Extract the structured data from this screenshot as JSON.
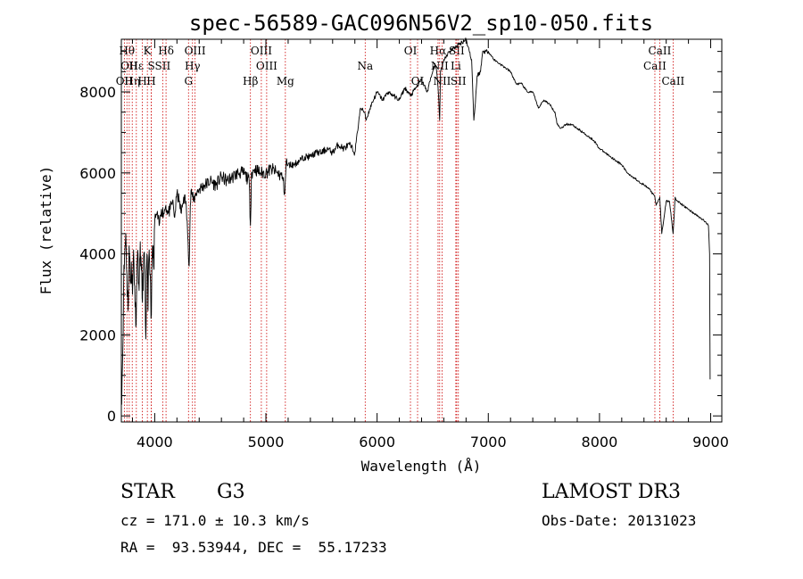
{
  "chart_data": {
    "type": "line",
    "title": "spec-56589-GAC096N56V2_sp10-050.fits",
    "xlabel": "Wavelength (Å)",
    "ylabel": "Flux (relative)",
    "xlim": [
      3700,
      9100
    ],
    "ylim": [
      -150,
      9300
    ],
    "xticks": [
      4000,
      5000,
      6000,
      7000,
      8000,
      9000
    ],
    "yticks": [
      0,
      2000,
      4000,
      6000,
      8000
    ],
    "grid": false,
    "series": [
      {
        "x": [
          3700,
          3710,
          3720,
          3730,
          3740,
          3750,
          3760,
          3770,
          3780,
          3790,
          3800,
          3810,
          3820,
          3830,
          3840,
          3850,
          3860,
          3870,
          3880,
          3890,
          3900,
          3910,
          3920,
          3930,
          3940,
          3950,
          3960,
          3970,
          3980,
          3990,
          4000,
          4020,
          4040,
          4060,
          4080,
          4100,
          4120,
          4140,
          4160,
          4180,
          4200,
          4220,
          4240,
          4260,
          4280,
          4300,
          4310,
          4320,
          4330,
          4340,
          4350,
          4370,
          4400,
          4450,
          4500,
          4550,
          4600,
          4650,
          4700,
          4750,
          4800,
          4850,
          4861,
          4870,
          4900,
          4950,
          5000,
          5050,
          5100,
          5150,
          5170,
          5183,
          5190,
          5250,
          5300,
          5350,
          5400,
          5450,
          5500,
          5550,
          5600,
          5650,
          5700,
          5750,
          5800,
          5850,
          5890,
          5900,
          5950,
          6000,
          6050,
          6100,
          6150,
          6200,
          6250,
          6300,
          6350,
          6400,
          6450,
          6500,
          6520,
          6540,
          6555,
          6563,
          6570,
          6580,
          6600,
          6650,
          6700,
          6750,
          6800,
          6850,
          6870,
          6880,
          6900,
          6930,
          6950,
          7000,
          7050,
          7100,
          7150,
          7200,
          7250,
          7300,
          7350,
          7400,
          7450,
          7500,
          7550,
          7600,
          7620,
          7650,
          7700,
          7750,
          7800,
          7850,
          7900,
          7950,
          8000,
          8050,
          8100,
          8150,
          8200,
          8250,
          8300,
          8350,
          8400,
          8450,
          8498,
          8510,
          8542,
          8560,
          8600,
          8630,
          8662,
          8680,
          8700,
          8750,
          8800,
          8850,
          8900,
          8950,
          8980,
          8990,
          8995
        ],
        "y": [
          500,
          1200,
          3100,
          4000,
          4500,
          3500,
          2600,
          4200,
          3300,
          3800,
          3000,
          4100,
          3200,
          2200,
          3700,
          4000,
          3100,
          4300,
          3600,
          2800,
          3900,
          3700,
          1900,
          4000,
          2600,
          4100,
          3500,
          2500,
          4200,
          3700,
          4800,
          5000,
          4700,
          5100,
          5000,
          5200,
          5000,
          5100,
          5300,
          4900,
          5500,
          5300,
          5000,
          5400,
          5300,
          4300,
          3700,
          5200,
          5600,
          5400,
          5300,
          5500,
          5600,
          5700,
          5800,
          5700,
          5900,
          5800,
          5900,
          6000,
          6000,
          5800,
          4700,
          6000,
          6100,
          6000,
          6000,
          6100,
          6000,
          5900,
          5500,
          6300,
          6200,
          6200,
          6300,
          6400,
          6400,
          6500,
          6500,
          6600,
          6500,
          6700,
          6600,
          6700,
          6500,
          7600,
          7500,
          7300,
          7700,
          8000,
          7800,
          8000,
          7900,
          7800,
          8100,
          7900,
          8100,
          8300,
          8000,
          8500,
          8700,
          8400,
          7800,
          7300,
          8500,
          8600,
          8800,
          9000,
          9100,
          9200,
          9300,
          8800,
          7300,
          7600,
          8400,
          8500,
          9000,
          9000,
          8800,
          8700,
          8600,
          8500,
          8200,
          8200,
          8000,
          8000,
          7600,
          7800,
          7700,
          7500,
          7200,
          7100,
          7200,
          7200,
          7100,
          7000,
          6900,
          6800,
          6600,
          6500,
          6400,
          6300,
          6200,
          6000,
          5900,
          5800,
          5700,
          5600,
          5400,
          5200,
          5400,
          4500,
          5300,
          5300,
          4500,
          5400,
          5300,
          5200,
          5100,
          5000,
          4900,
          4800,
          4700,
          4000,
          900
        ]
      }
    ],
    "lines": [
      {
        "x": 3727,
        "label": "OII",
        "row": 3
      },
      {
        "x": 3750,
        "label": "Hθ",
        "row": 1
      },
      {
        "x": 3771,
        "label": "OII",
        "row": 2
      },
      {
        "x": 3798,
        "label": "Hη",
        "row": 3
      },
      {
        "x": 3835,
        "label": "Hε",
        "row": 2
      },
      {
        "x": 3889,
        "label": "H",
        "row": 3
      },
      {
        "x": 3934,
        "label": "K",
        "row": 1
      },
      {
        "x": 3969,
        "label": "H",
        "row": 3
      },
      {
        "x": 3970,
        "label": "S",
        "row": 2
      },
      {
        "x": 4072,
        "label": "SII",
        "row": 2
      },
      {
        "x": 4102,
        "label": "Hδ",
        "row": 1
      },
      {
        "x": 4304,
        "label": "G",
        "row": 3
      },
      {
        "x": 4340,
        "label": "Hγ",
        "row": 2
      },
      {
        "x": 4363,
        "label": "OIII",
        "row": 1
      },
      {
        "x": 4861,
        "label": "Hβ",
        "row": 3
      },
      {
        "x": 4959,
        "label": "OIII",
        "row": 1
      },
      {
        "x": 5007,
        "label": "OIII",
        "row": 2
      },
      {
        "x": 5175,
        "label": "Mg",
        "row": 3
      },
      {
        "x": 5893,
        "label": "Na",
        "row": 2
      },
      {
        "x": 6300,
        "label": "OI",
        "row": 1
      },
      {
        "x": 6364,
        "label": "OI",
        "row": 3
      },
      {
        "x": 6548,
        "label": "Hα",
        "row": 1
      },
      {
        "x": 6563,
        "label": "NII",
        "row": 2
      },
      {
        "x": 6584,
        "label": "NII",
        "row": 3
      },
      {
        "x": 6708,
        "label": "Li",
        "row": 2
      },
      {
        "x": 6716,
        "label": "SII",
        "row": 1
      },
      {
        "x": 6731,
        "label": "SII",
        "row": 3
      },
      {
        "x": 8498,
        "label": "CaII",
        "row": 2
      },
      {
        "x": 8542,
        "label": "CaII",
        "row": 1
      },
      {
        "x": 8662,
        "label": "CaII",
        "row": 3
      }
    ]
  },
  "info": {
    "class": "STAR",
    "subclass": "G3",
    "survey": "LAMOST DR3",
    "cz": "cz = 171.0 ± 10.3 km/s",
    "obs_date": "Obs-Date: 20131023",
    "coords": "RA =  93.53944, DEC =  55.17233"
  }
}
